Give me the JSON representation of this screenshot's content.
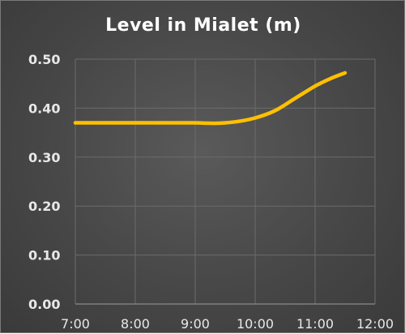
{
  "chart_data": {
    "type": "line",
    "title": "Level in Mialet (m)",
    "xlabel": "",
    "ylabel": "",
    "x_ticks": [
      "7:00",
      "8:00",
      "9:00",
      "10:00",
      "11:00",
      "12:00"
    ],
    "y_ticks": [
      "0.00",
      "0.10",
      "0.20",
      "0.30",
      "0.40",
      "0.50"
    ],
    "xlim": [
      7,
      12
    ],
    "ylim": [
      0,
      0.5
    ],
    "grid": true,
    "series": [
      {
        "color": "#ffc000",
        "x": [
          "7:00",
          "7:30",
          "8:00",
          "8:30",
          "9:00",
          "9:20",
          "9:40",
          "10:00",
          "10:20",
          "10:40",
          "11:00",
          "11:15",
          "11:30"
        ],
        "values": [
          0.37,
          0.37,
          0.37,
          0.37,
          0.37,
          0.369,
          0.372,
          0.38,
          0.395,
          0.42,
          0.445,
          0.46,
          0.472
        ]
      }
    ],
    "colors": {
      "background": "#474747",
      "grid": "#6b6b6b",
      "text": "#e8e8e8",
      "line": "#ffc000"
    }
  }
}
